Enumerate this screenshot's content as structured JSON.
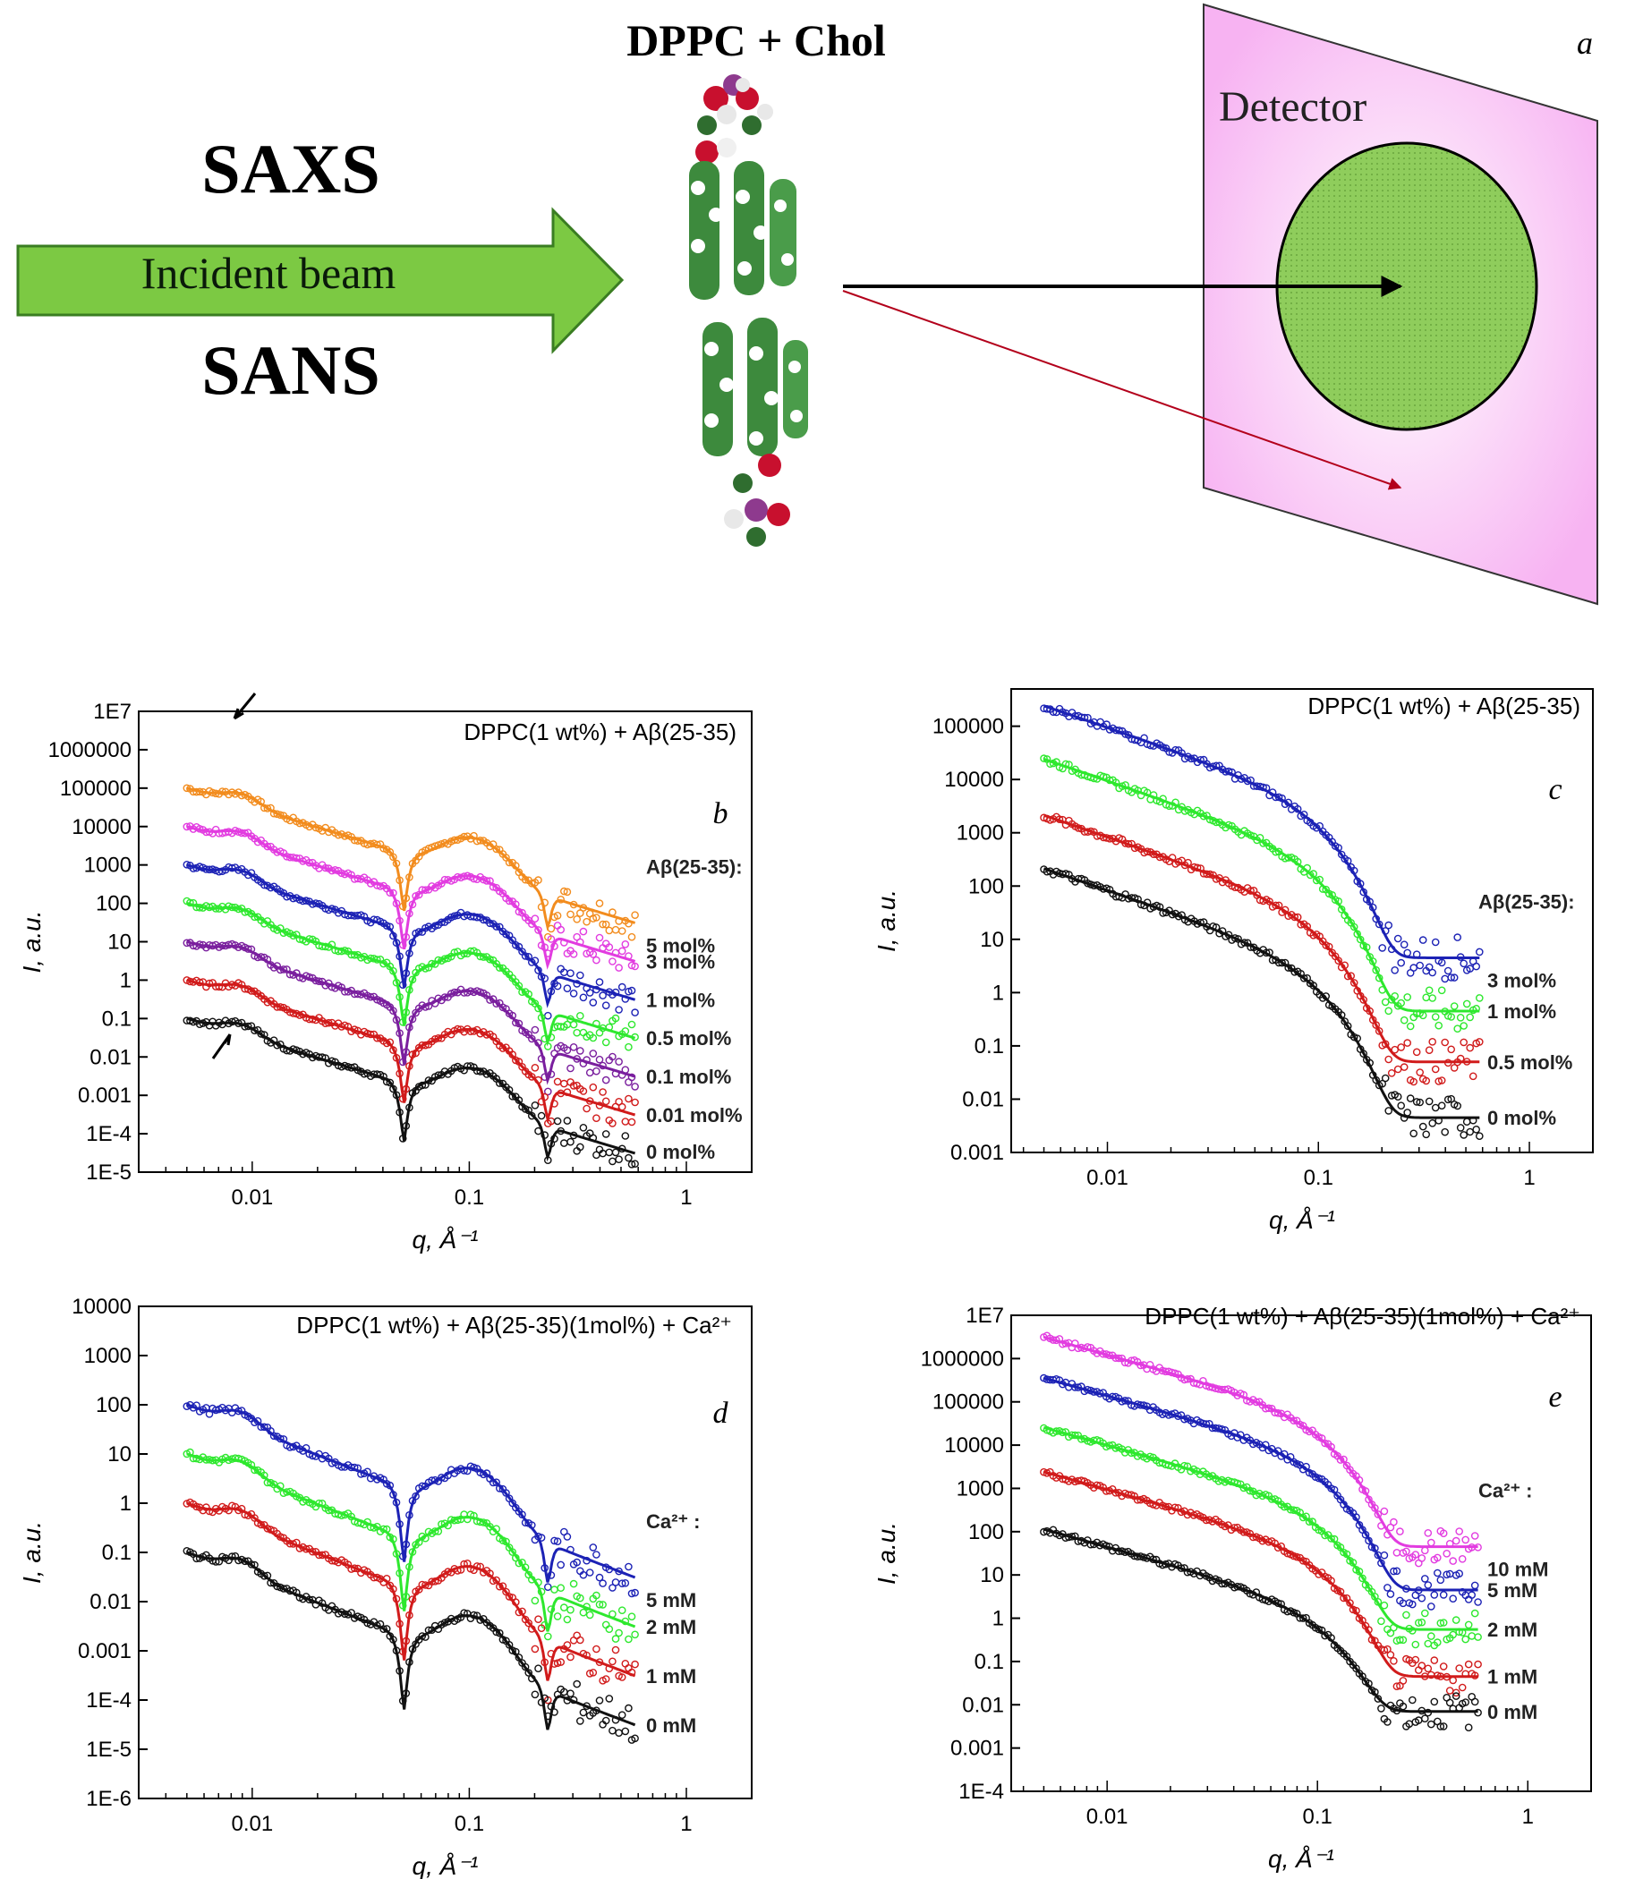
{
  "schematic": {
    "panel_label": "a",
    "molecule_title": "DPPC + Chol",
    "top_technique": "SAXS",
    "bottom_technique": "SANS",
    "beam_label": "Incident beam",
    "detector_label": "Detector",
    "colors": {
      "beam": "#7cc943",
      "detector_plane": "#f7b3f2",
      "detector_disk": "#8fcd5c",
      "scatter_arrow": "#b3001b"
    }
  },
  "chart_data": [
    {
      "type": "scatter",
      "panel_label": "b",
      "title": "DPPC(1 wt%) + Aβ(25-35)",
      "xlabel": "q, Å⁻¹",
      "ylabel": "I, a.u.",
      "xscale": "log",
      "yscale": "log",
      "xlim": [
        0.003,
        2
      ],
      "ylim": [
        1e-05,
        10000000.0
      ],
      "xticks": [
        0.01,
        0.1,
        1
      ],
      "xtick_labels": [
        "0.01",
        "0.1",
        "1"
      ],
      "yticks": [
        1e-05,
        0.0001,
        0.001,
        0.01,
        0.1,
        1,
        10,
        100,
        1000,
        10000,
        100000,
        1000000,
        10000000
      ],
      "ytick_labels": [
        "1E-5",
        "1E-4",
        "0.001",
        "0.01",
        "0.1",
        "1",
        "10",
        "100",
        "1000",
        "10000",
        "100000",
        "1000000",
        "1E7"
      ],
      "legend_title": "Aβ(25-35):",
      "legend_placement": "right",
      "grid": false,
      "annotations": [
        "arrow near q≈0.008 on top curve",
        "arrow near q≈0.008 on bottom curve"
      ],
      "series": [
        {
          "name": "5 mol%",
          "color": "#f28c1e",
          "shape": "vesicle",
          "scale": 100000,
          "background": 0.0006
        },
        {
          "name": "3 mol%",
          "color": "#e23ce0",
          "shape": "vesicle",
          "scale": 10000,
          "background": 0.0001
        },
        {
          "name": "1 mol%",
          "color": "#1c22b5",
          "shape": "vesicle",
          "scale": 1000,
          "background": 5e-06
        },
        {
          "name": "0.5 mol%",
          "color": "#2ee82e",
          "shape": "vesicle",
          "scale": 100,
          "background": 5e-07
        },
        {
          "name": "0.1 mol%",
          "color": "#7a1f9e",
          "shape": "vesicle",
          "scale": 10,
          "background": 1e-07
        },
        {
          "name": "0.01 mol%",
          "color": "#d11b1b",
          "shape": "vesicle",
          "scale": 1,
          "background": 2e-08
        },
        {
          "name": "0 mol%",
          "color": "#111111",
          "shape": "vesicle",
          "scale": 0.1,
          "background": 8e-09
        }
      ]
    },
    {
      "type": "scatter",
      "panel_label": "c",
      "title": "DPPC(1 wt%) + Aβ(25-35)",
      "xlabel": "q, Å⁻¹",
      "ylabel": "I, a.u.",
      "xscale": "log",
      "yscale": "log",
      "xlim": [
        0.0035,
        2
      ],
      "ylim": [
        0.001,
        500000
      ],
      "xticks": [
        0.01,
        0.1,
        1
      ],
      "xtick_labels": [
        "0.01",
        "0.1",
        "1"
      ],
      "yticks": [
        0.001,
        0.01,
        0.1,
        1,
        10,
        100,
        1000,
        10000,
        100000
      ],
      "ytick_labels": [
        "0.001",
        "0.01",
        "0.1",
        "1",
        "10",
        "100",
        "1000",
        "10000",
        "100000"
      ],
      "legend_title": "Aβ(25-35):",
      "legend_placement": "right",
      "grid": false,
      "series": [
        {
          "name": "3 mol%",
          "color": "#1c22b5",
          "shape": "sans",
          "i0": 170000,
          "background": 4.5
        },
        {
          "name": "1 mol%",
          "color": "#2ee82e",
          "shape": "sans",
          "i0": 17000,
          "background": 0.45
        },
        {
          "name": "0.5 mol%",
          "color": "#d11b1b",
          "shape": "sans",
          "i0": 1500,
          "background": 0.05
        },
        {
          "name": "0 mol%",
          "color": "#111111",
          "shape": "sans",
          "i0": 150,
          "background": 0.0045
        }
      ]
    },
    {
      "type": "scatter",
      "panel_label": "d",
      "title": "DPPC(1 wt%) + Aβ(25-35)(1mol%) + Ca²⁺",
      "xlabel": "q, Å⁻¹",
      "ylabel": "I, a.u.",
      "xscale": "log",
      "yscale": "log",
      "xlim": [
        0.003,
        2
      ],
      "ylim": [
        1e-06,
        10000
      ],
      "xticks": [
        0.01,
        0.1,
        1
      ],
      "xtick_labels": [
        "0.01",
        "0.1",
        "1"
      ],
      "yticks": [
        1e-06,
        1e-05,
        0.0001,
        0.001,
        0.01,
        0.1,
        1,
        10,
        100,
        1000,
        10000
      ],
      "ytick_labels": [
        "1E-6",
        "1E-5",
        "1E-4",
        "0.001",
        "0.01",
        "0.1",
        "1",
        "10",
        "100",
        "1000",
        "10000"
      ],
      "legend_title": "Ca²⁺ :",
      "legend_placement": "right",
      "grid": false,
      "series": [
        {
          "name": "5 mM",
          "color": "#1c22b5",
          "shape": "vesicle",
          "scale": 100,
          "background": 2e-05
        },
        {
          "name": "2 mM",
          "color": "#2ee82e",
          "shape": "vesicle",
          "scale": 10,
          "background": 5e-06
        },
        {
          "name": "1 mM",
          "color": "#d11b1b",
          "shape": "vesicle",
          "scale": 1,
          "background": 5e-07
        },
        {
          "name": "0 mM",
          "color": "#111111",
          "shape": "vesicle",
          "scale": 0.1,
          "background": 3e-07
        }
      ]
    },
    {
      "type": "scatter",
      "panel_label": "e",
      "title": "DPPC(1 wt%) + Aβ(25-35)(1mol%) + Ca²⁺",
      "xlabel": "q, Å⁻¹",
      "ylabel": "I, a.u.",
      "xscale": "log",
      "yscale": "log",
      "xlim": [
        0.0035,
        2
      ],
      "ylim": [
        0.0001,
        10000000
      ],
      "xticks": [
        0.01,
        0.1,
        1
      ],
      "xtick_labels": [
        "0.01",
        "0.1",
        "1"
      ],
      "yticks": [
        0.0001,
        0.001,
        0.01,
        0.1,
        1,
        10,
        100,
        1000,
        10000,
        100000,
        1000000,
        10000000
      ],
      "ytick_labels": [
        "1E-4",
        "0.001",
        "0.01",
        "0.1",
        "1",
        "10",
        "100",
        "1000",
        "10000",
        "100000",
        "1000000",
        "1E7"
      ],
      "legend_title": "Ca²⁺ :",
      "legend_placement": "right",
      "grid": false,
      "series": [
        {
          "name": "10 mM",
          "color": "#e23ce0",
          "shape": "sans",
          "i0": 2200000,
          "background": 45
        },
        {
          "name": "5 mM",
          "color": "#1c22b5",
          "shape": "sans",
          "i0": 250000,
          "background": 4.5
        },
        {
          "name": "2 mM",
          "color": "#2ee82e",
          "shape": "sans",
          "i0": 18000,
          "background": 0.55
        },
        {
          "name": "1 mM",
          "color": "#d11b1b",
          "shape": "sans",
          "i0": 1700,
          "background": 0.045
        },
        {
          "name": "0 mM",
          "color": "#111111",
          "shape": "sans",
          "i0": 80,
          "background": 0.007
        }
      ]
    }
  ]
}
